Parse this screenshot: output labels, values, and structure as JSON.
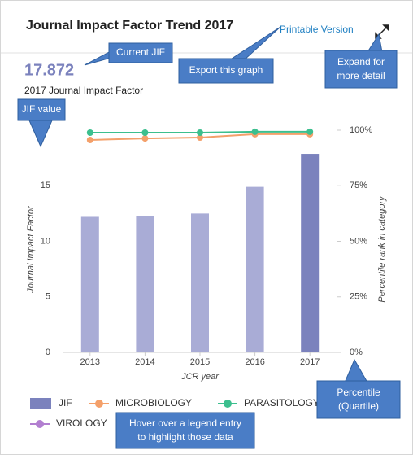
{
  "header": {
    "title": "Journal Impact Factor Trend 2017",
    "link": "Printable Version",
    "jif": "17.872",
    "jif_label": "2017 Journal Impact Factor"
  },
  "callouts": {
    "current": "Current JIF",
    "export": "Export this graph",
    "expand": [
      "Expand for",
      "more detail"
    ],
    "jif_value": "JIF value",
    "percentile": [
      "Percentile",
      "(Quartile)"
    ],
    "hover": [
      "Hover over a legend entry",
      "to highlight those data"
    ]
  },
  "chart_data": {
    "type": "bar_line",
    "categories": [
      "2013",
      "2014",
      "2015",
      "2016",
      "2017"
    ],
    "ylabel": "Journal Impact Factor",
    "y2label": "Percentile rank in category",
    "xlabel": "JCR year",
    "ylim": [
      0,
      20
    ],
    "yticks": [
      0,
      5,
      10,
      15
    ],
    "y2lim": [
      0,
      100
    ],
    "y2ticks": [
      {
        "value": 0,
        "label": "0%"
      },
      {
        "value": 25,
        "label": "25%"
      },
      {
        "value": 50,
        "label": "50%"
      },
      {
        "value": 75,
        "label": "75%"
      },
      {
        "value": 100,
        "label": "100%"
      }
    ],
    "series": [
      {
        "name": "JIF",
        "type": "bar",
        "color": "#a9acd6",
        "colors": [
          "#a9acd6",
          "#a9acd6",
          "#a9acd6",
          "#a9acd6",
          "#7b82bd"
        ],
        "values": [
          12.2,
          12.3,
          12.5,
          14.9,
          17.872
        ]
      },
      {
        "name": "MICROBIOLOGY",
        "type": "line",
        "axis": "y2",
        "color": "#f4a06a",
        "values": [
          95.6,
          96.3,
          96.7,
          98.2,
          98.2
        ]
      },
      {
        "name": "PARASITOLOGY",
        "type": "line",
        "axis": "y2",
        "color": "#3cbf8e",
        "values": [
          98.9,
          98.9,
          98.9,
          99.3,
          99.3
        ]
      },
      {
        "name": "VIROLOGY",
        "type": "line",
        "axis": "y2",
        "color": "#b27fd0",
        "values": [
          null,
          null,
          null,
          null,
          null
        ]
      }
    ]
  }
}
